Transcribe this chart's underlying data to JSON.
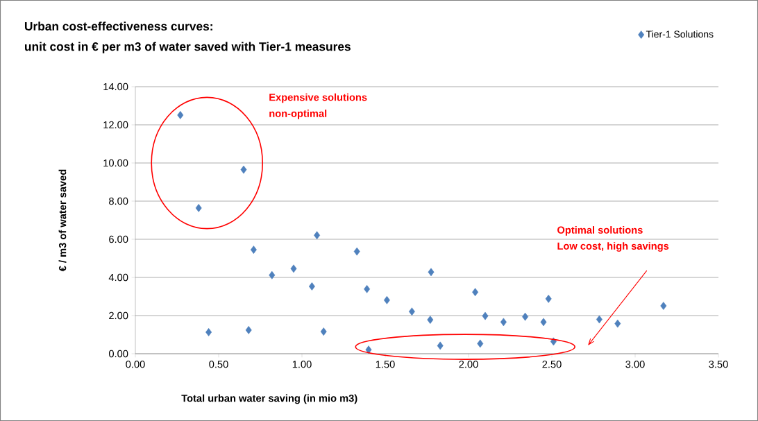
{
  "chart_data": {
    "type": "scatter",
    "title": "Urban cost-effectiveness curves:",
    "subtitle": "unit cost in € per m3 of water saved with Tier-1 measures",
    "xlabel": "Total urban water saving (in mio m3)",
    "ylabel": "€ / m3 of water saved",
    "series": [
      {
        "name": "Tier-1 Solutions",
        "color": "#4f81bd",
        "x": [
          0.27,
          0.38,
          0.44,
          0.65,
          0.68,
          0.71,
          0.82,
          0.95,
          1.06,
          1.09,
          1.13,
          1.33,
          1.39,
          1.4,
          1.51,
          1.66,
          1.77,
          1.775,
          1.83,
          2.04,
          2.07,
          2.1,
          2.21,
          2.34,
          2.45,
          2.48,
          2.51,
          2.785,
          2.895,
          3.17
        ],
        "values": [
          12.51,
          7.64,
          1.13,
          9.65,
          1.24,
          5.45,
          4.12,
          4.46,
          3.53,
          6.21,
          1.16,
          5.36,
          3.39,
          0.21,
          2.81,
          2.21,
          1.78,
          4.28,
          0.42,
          3.23,
          0.53,
          1.98,
          1.66,
          1.94,
          1.66,
          2.88,
          0.64,
          1.8,
          1.58,
          2.51
        ]
      }
    ],
    "annotations": [
      "Expensive  solutions",
      "non-optimal",
      "Optimal solutions",
      "Low cost, high savings"
    ],
    "xlim": [
      0,
      3.5
    ],
    "xticks": [
      {
        "value": 0,
        "label": "0.00"
      },
      {
        "value": 0.5,
        "label": "0.50"
      },
      {
        "value": 1,
        "label": "1.00"
      },
      {
        "value": 1.5,
        "label": "1.50"
      },
      {
        "value": 2,
        "label": "2.00"
      },
      {
        "value": 2.5,
        "label": "2.50"
      },
      {
        "value": 3,
        "label": "3.00"
      },
      {
        "value": 3.5,
        "label": "3.50"
      }
    ],
    "ylim": [
      0,
      14
    ],
    "yticks": [
      {
        "value": 0,
        "label": "0.00"
      },
      {
        "value": 2,
        "label": "2.00"
      },
      {
        "value": 4,
        "label": "4.00"
      },
      {
        "value": 6,
        "label": "6.00"
      },
      {
        "value": 8,
        "label": "8.00"
      },
      {
        "value": 10,
        "label": "10.00"
      },
      {
        "value": 12,
        "label": "12.00"
      },
      {
        "value": 14,
        "label": "14.00"
      }
    ],
    "grid": "y",
    "legend": "top right",
    "marker": "diamond"
  }
}
